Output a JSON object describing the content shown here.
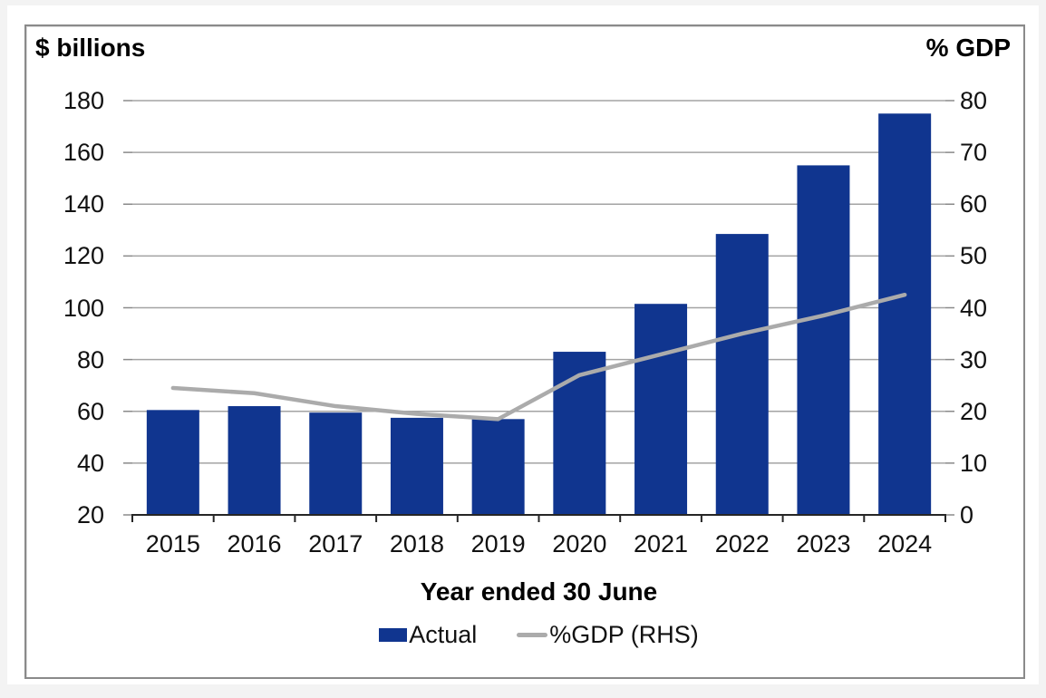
{
  "chart_data": {
    "type": "bar+line combo",
    "categories": [
      "2015",
      "2016",
      "2017",
      "2018",
      "2019",
      "2020",
      "2021",
      "2022",
      "2023",
      "2024"
    ],
    "series": [
      {
        "name": "Actual",
        "type": "bar",
        "axis": "left",
        "color": "#10358F",
        "values": [
          60.5,
          62,
          59.5,
          57.5,
          57,
          83,
          101.5,
          128.5,
          155,
          175
        ]
      },
      {
        "name": "%GDP (RHS)",
        "type": "line",
        "axis": "right",
        "color": "#ABABAB",
        "values": [
          24.5,
          23.5,
          21,
          19.5,
          18.5,
          27,
          31,
          35,
          38.5,
          42.5
        ]
      }
    ],
    "left_axis": {
      "title": "$ billions",
      "min": 20,
      "max": 180,
      "ticks": [
        180,
        160,
        140,
        120,
        100,
        80,
        60,
        40,
        20
      ]
    },
    "right_axis": {
      "title": "% GDP",
      "min": 0,
      "max": 80,
      "ticks": [
        80,
        70,
        60,
        50,
        40,
        30,
        20,
        10,
        0
      ]
    },
    "xlabel": "Year ended 30 June",
    "legend_position": "bottom",
    "grid": true
  },
  "style": {
    "gridline_color": "#a3a3a3",
    "axis_color": "#262626",
    "tick_color": "#8a8a8a",
    "frame_border_color": "#8a8a8a",
    "page_background": "#f3f3f3",
    "panel_background": "#ffffff"
  }
}
